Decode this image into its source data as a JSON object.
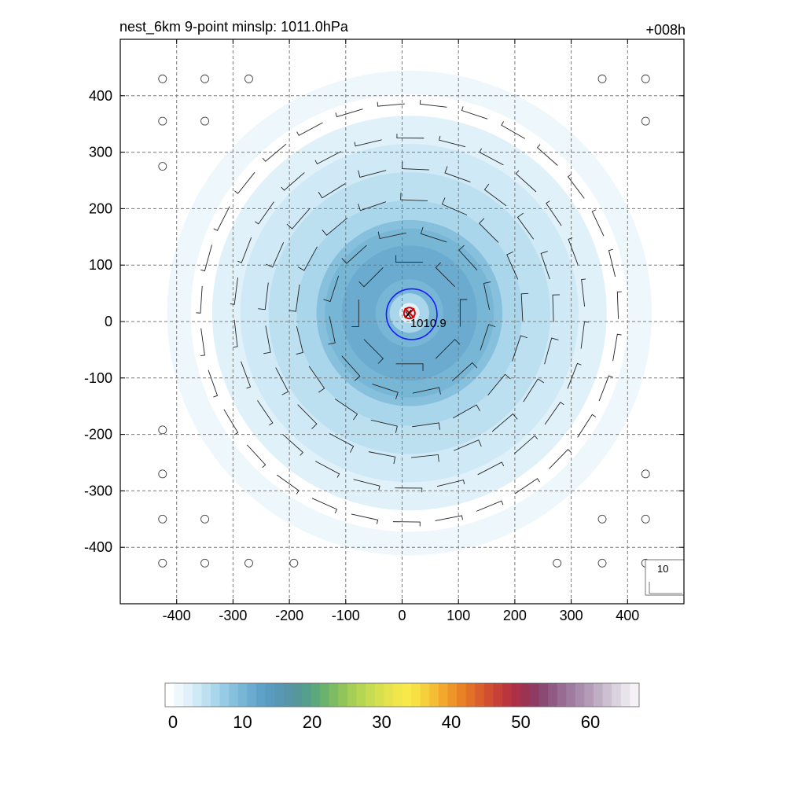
{
  "chart_data": {
    "type": "heatmap",
    "title": "nest_6km  9-point minslp: 1011.0hPa",
    "lead_time": "+008h",
    "xlabel": "",
    "ylabel": "",
    "xlim": [
      -500,
      500
    ],
    "ylim": [
      -500,
      500
    ],
    "xticks": [
      -400,
      -300,
      -200,
      -100,
      0,
      100,
      200,
      300,
      400
    ],
    "yticks": [
      -400,
      -300,
      -200,
      -100,
      0,
      100,
      200,
      300,
      400
    ],
    "grid": true,
    "center": {
      "x": 13,
      "y": 15,
      "label": "1010.9"
    },
    "rmw_circle_radius": 45,
    "wind_field": {
      "radii": [
        90,
        140,
        200,
        255,
        310,
        370
      ],
      "magnitudes": [
        13,
        11,
        9,
        7,
        5,
        3
      ]
    },
    "calm_points": [
      [
        -425,
        430
      ],
      [
        -350,
        430
      ],
      [
        -272,
        430
      ],
      [
        355,
        430
      ],
      [
        432,
        430
      ],
      [
        -425,
        355
      ],
      [
        -350,
        355
      ],
      [
        432,
        355
      ],
      [
        -425,
        275
      ],
      [
        -425,
        -192
      ],
      [
        -425,
        -270
      ],
      [
        432,
        -270
      ],
      [
        -425,
        -350
      ],
      [
        -350,
        -350
      ],
      [
        355,
        -350
      ],
      [
        432,
        -350
      ],
      [
        -425,
        -428
      ],
      [
        -350,
        -428
      ],
      [
        -272,
        -428
      ],
      [
        -192,
        -428
      ],
      [
        275,
        -428
      ],
      [
        355,
        -428
      ],
      [
        432,
        -428
      ]
    ],
    "reference_vector": {
      "label": "10"
    },
    "colorbar": {
      "ticks": [
        0,
        10,
        20,
        30,
        40,
        50,
        60
      ],
      "min": 0,
      "max": 66,
      "colors": [
        "#ffffff",
        "#eef7fc",
        "#e0f1fa",
        "#cfe9f6",
        "#bde0f1",
        "#aad6ec",
        "#97cbe5",
        "#86c0dd",
        "#78b6d6",
        "#6aabcf",
        "#5fa2c8",
        "#5a9cc0",
        "#5898b4",
        "#5896a7",
        "#56989a",
        "#55a08c",
        "#5ca87b",
        "#6bb26d",
        "#7dbc63",
        "#91c55a",
        "#a4ce55",
        "#b6d653",
        "#c6dc52",
        "#d6e04f",
        "#e4e34d",
        "#f1e64b",
        "#f8e84a",
        "#f6e044",
        "#f5d03c",
        "#f4bd33",
        "#f2a82c",
        "#ee9528",
        "#e98226",
        "#e27027",
        "#da5f2b",
        "#d14f30",
        "#c64137",
        "#b9363f",
        "#ab3048",
        "#9c3353",
        "#8f3a62",
        "#8a4a74",
        "#8f5b85",
        "#976b92",
        "#9f7b9f",
        "#a98bab",
        "#b49cb8",
        "#c0aec5",
        "#cdc0d2",
        "#dbd2df",
        "#e9e3ec",
        "#f5f1f6"
      ]
    }
  }
}
